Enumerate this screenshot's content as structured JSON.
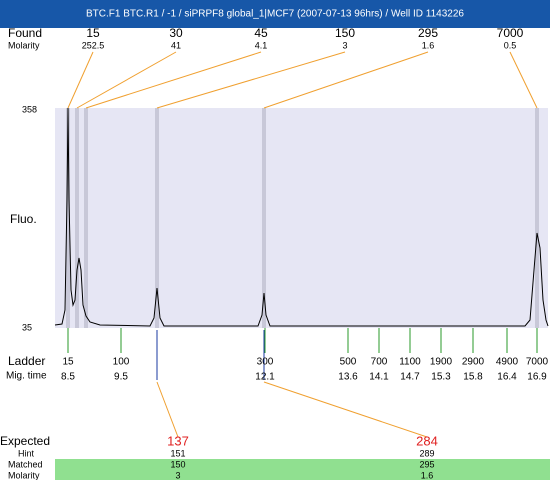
{
  "header": {
    "title": "BTC.F1  BTC.R1 / -1 / siPRPF8 global_1|MCF7 (2007-07-13 96hrs) / Well ID 1143226"
  },
  "found": {
    "label": "Found",
    "molarity_label": "Molarity",
    "peaks": [
      {
        "size": "15",
        "molarity": "252.5"
      },
      {
        "size": "30",
        "molarity": "41"
      },
      {
        "size": "45",
        "molarity": "4.1"
      },
      {
        "size": "150",
        "molarity": "3"
      },
      {
        "size": "295",
        "molarity": "1.6"
      },
      {
        "size": "7000",
        "molarity": "0.5"
      }
    ]
  },
  "plot": {
    "y_label": "Fluo.",
    "y_max": "358",
    "y_min": "35"
  },
  "ladder": {
    "label": "Ladder",
    "time_label": "Mig. time",
    "bands": [
      {
        "size": "15",
        "time": "8.5"
      },
      {
        "size": "100",
        "time": "9.5"
      },
      {
        "size": "300",
        "time": "12.1"
      },
      {
        "size": "500",
        "time": "13.6"
      },
      {
        "size": "700",
        "time": "14.1"
      },
      {
        "size": "1100",
        "time": "14.7"
      },
      {
        "size": "1900",
        "time": "15.3"
      },
      {
        "size": "2900",
        "time": "15.8"
      },
      {
        "size": "4900",
        "time": "16.4"
      },
      {
        "size": "7000",
        "time": "16.9"
      }
    ]
  },
  "expected": {
    "label": "Expected",
    "hint_label": "Hint",
    "matched_label": "Matched",
    "molarity_label": "Molarity",
    "items": [
      {
        "expected": "137",
        "hint": "151",
        "matched": "150",
        "molarity": "3"
      },
      {
        "expected": "284",
        "hint": "289",
        "matched": "295",
        "molarity": "1.6"
      }
    ]
  }
}
